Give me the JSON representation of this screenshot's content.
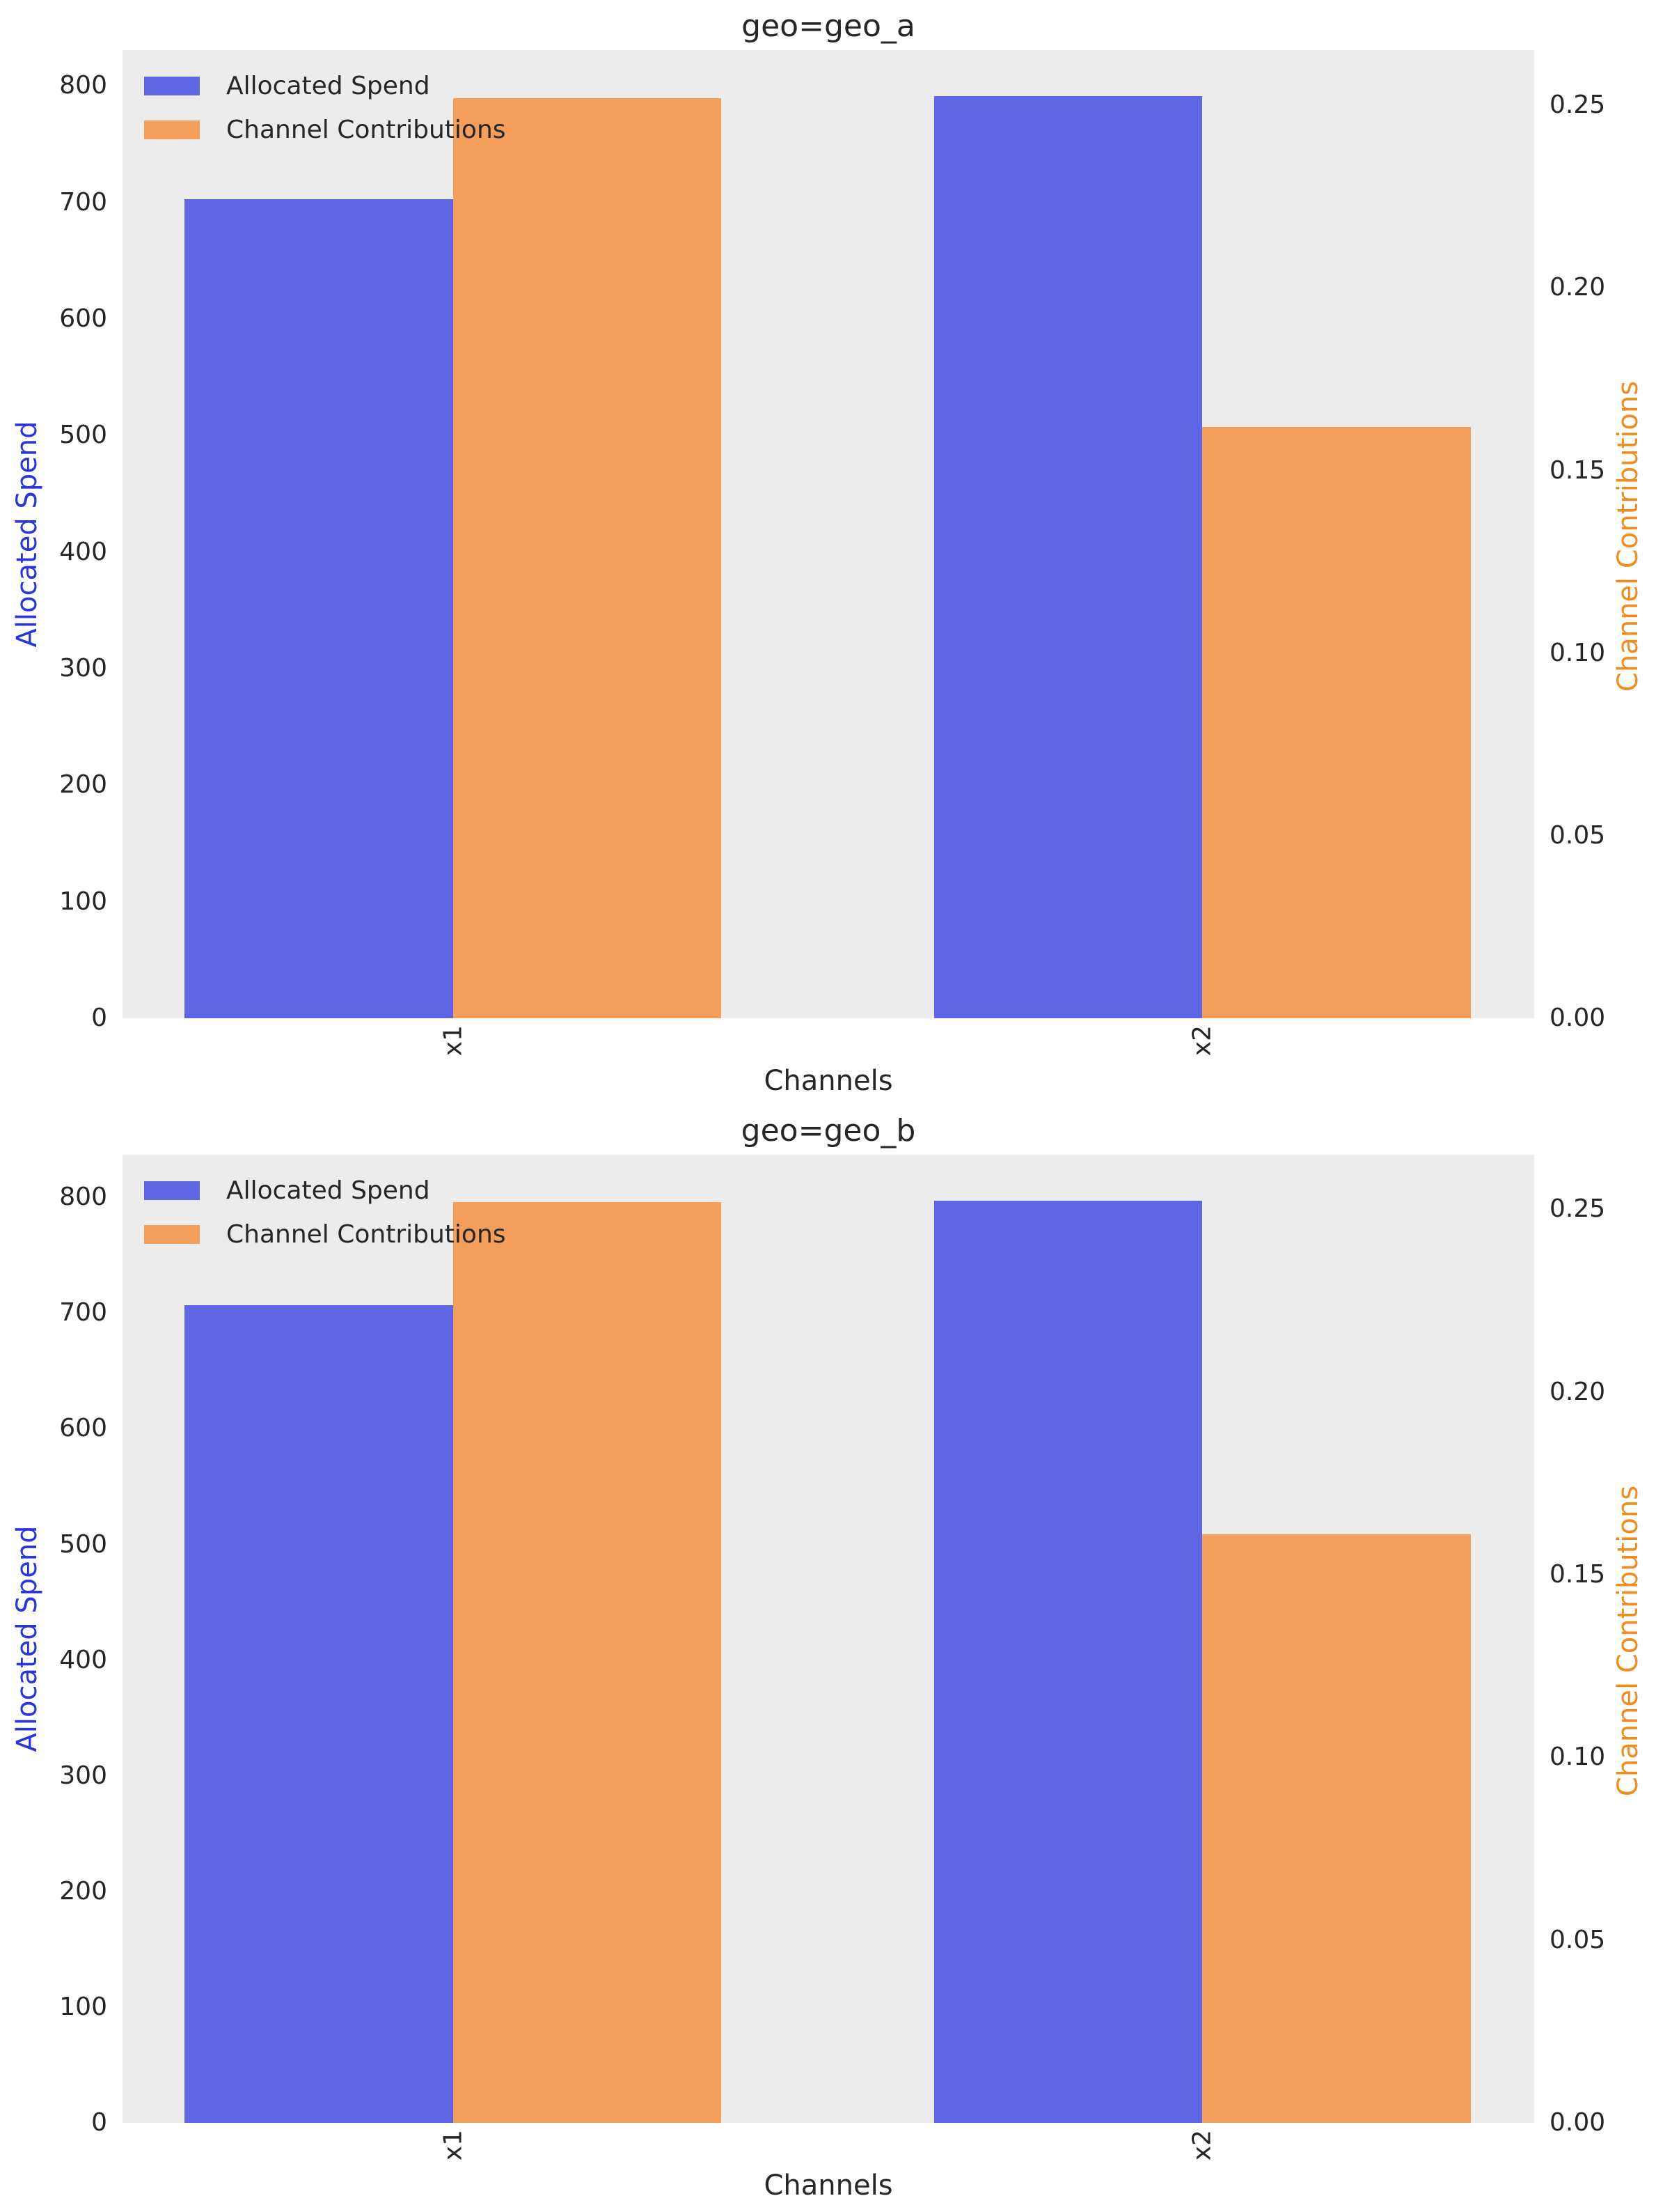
{
  "figure": {
    "background": "#ffffff",
    "plot_background": "#ECECEC",
    "bar_blue": "#5E66E3",
    "bar_orange": "#F49E5B",
    "axis_label_blue": "#2A35DB",
    "axis_label_orange": "#F18C1E",
    "tick_color": "#262626"
  },
  "chart_data": [
    {
      "type": "bar",
      "title": "geo=geo_a",
      "xlabel": "Channels",
      "ylabel_left": "Allocated Spend",
      "ylabel_right": "Channel Contributions",
      "categories": [
        "x1",
        "x2"
      ],
      "series": [
        {
          "name": "Allocated Spend",
          "axis": "left",
          "color_key": "bar_blue",
          "values": [
            703,
            791
          ]
        },
        {
          "name": "Channel Contributions",
          "axis": "right",
          "color_key": "bar_orange",
          "values": [
            0.252,
            0.162
          ]
        }
      ],
      "left_axis": {
        "tick_labels": [
          "0",
          "100",
          "200",
          "300",
          "400",
          "500",
          "600",
          "700",
          "800"
        ],
        "tick_values": [
          0,
          100,
          200,
          300,
          400,
          500,
          600,
          700,
          800
        ],
        "min": 0,
        "max": 830.6
      },
      "right_axis": {
        "tick_labels": [
          "0.00",
          "0.05",
          "0.10",
          "0.15",
          "0.20",
          "0.25"
        ],
        "tick_values": [
          0,
          0.05,
          0.1,
          0.15,
          0.2,
          0.25
        ],
        "min": 0,
        "max": 0.2651
      },
      "legend": {
        "position": "upper left",
        "entries": [
          "Allocated Spend",
          "Channel Contributions"
        ]
      },
      "grid": false,
      "layout": {
        "x_centers_pct": [
          23.4,
          76.5
        ],
        "bar_width_pct": 19.0
      }
    },
    {
      "type": "bar",
      "title": "geo=geo_b",
      "xlabel": "Channels",
      "ylabel_left": "Allocated Spend",
      "ylabel_right": "Channel Contributions",
      "categories": [
        "x1",
        "x2"
      ],
      "series": [
        {
          "name": "Allocated Spend",
          "axis": "left",
          "color_key": "bar_blue",
          "values": [
            707,
            797
          ]
        },
        {
          "name": "Channel Contributions",
          "axis": "right",
          "color_key": "bar_orange",
          "values": [
            0.252,
            0.161
          ]
        }
      ],
      "left_axis": {
        "tick_labels": [
          "0",
          "100",
          "200",
          "300",
          "400",
          "500",
          "600",
          "700",
          "800"
        ],
        "tick_values": [
          0,
          100,
          200,
          300,
          400,
          500,
          600,
          700,
          800
        ],
        "min": 0,
        "max": 836.9
      },
      "right_axis": {
        "tick_labels": [
          "0.00",
          "0.05",
          "0.10",
          "0.15",
          "0.20",
          "0.25"
        ],
        "tick_values": [
          0,
          0.05,
          0.1,
          0.15,
          0.2,
          0.25
        ],
        "min": 0,
        "max": 0.2649
      },
      "legend": {
        "position": "upper left",
        "entries": [
          "Allocated Spend",
          "Channel Contributions"
        ]
      },
      "grid": false,
      "layout": {
        "x_centers_pct": [
          23.4,
          76.5
        ],
        "bar_width_pct": 19.0
      }
    }
  ]
}
